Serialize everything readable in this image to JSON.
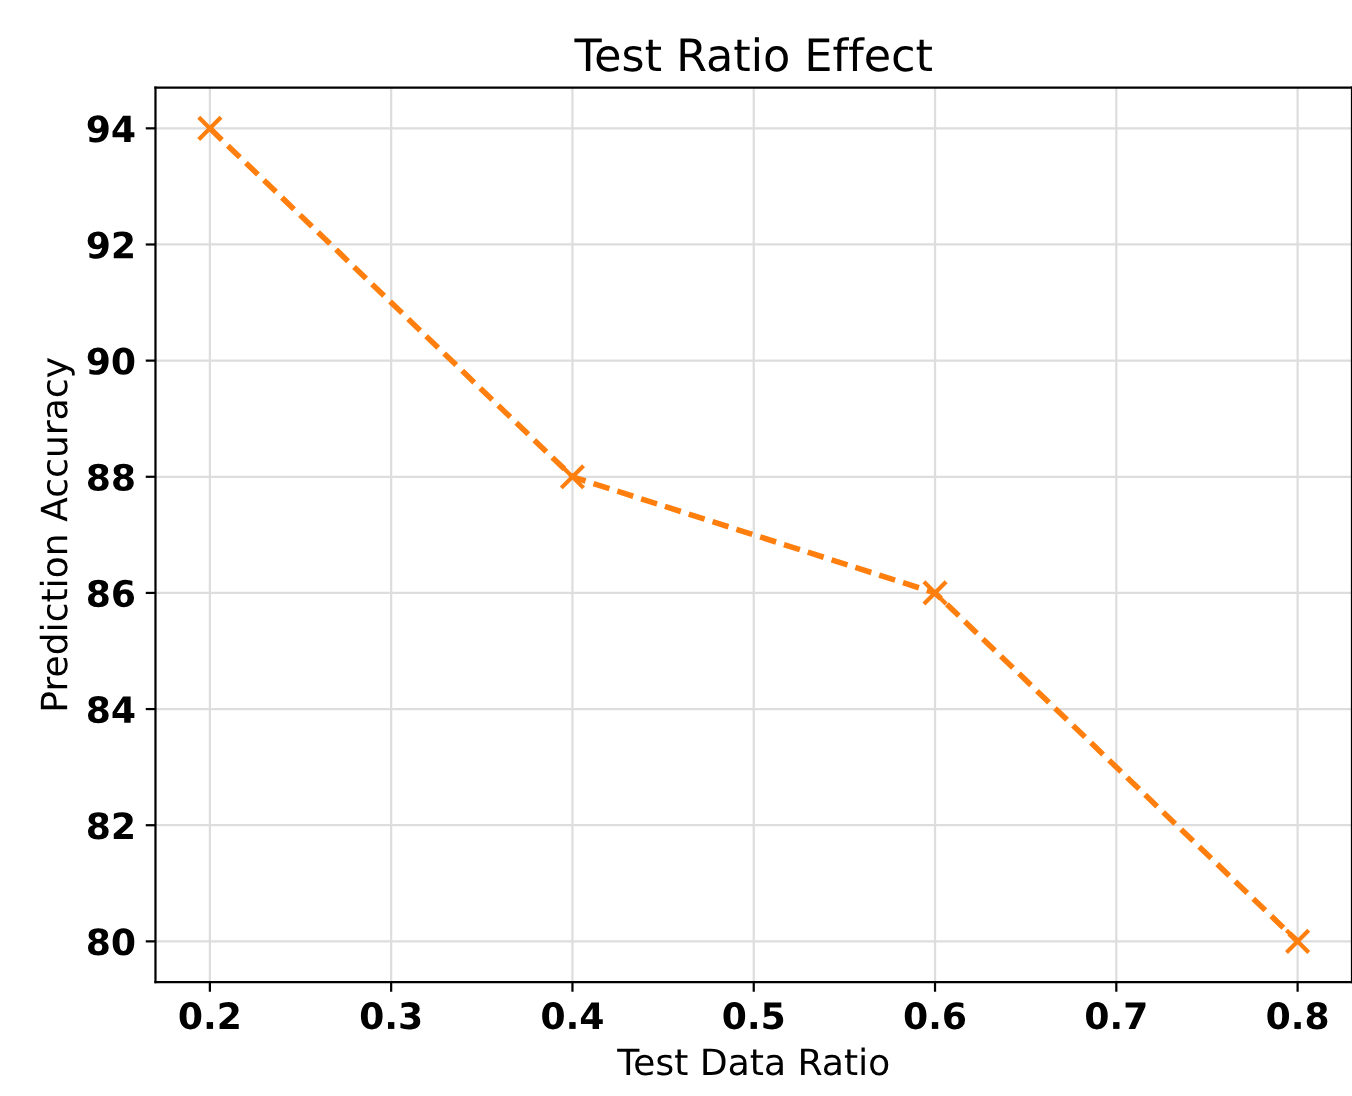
{
  "chart_data": {
    "type": "line",
    "title": "Test Ratio Effect",
    "xlabel": "Test Data Ratio",
    "ylabel": "Prediction Accuracy",
    "x": [
      0.2,
      0.4,
      0.6,
      0.8
    ],
    "series": [
      {
        "color": "#ff7f0e",
        "values": [
          94,
          88,
          86,
          80
        ]
      }
    ],
    "xlim": [
      0.17,
      0.83
    ],
    "xticks": [
      0.2,
      0.3,
      0.4,
      0.5,
      0.6,
      0.7,
      0.8
    ],
    "ylim": [
      79.3,
      94.7
    ],
    "yticks": [
      80,
      82,
      84,
      86,
      88,
      90,
      92,
      94
    ],
    "grid": true,
    "marker": "cross",
    "line_style": "dashed"
  }
}
